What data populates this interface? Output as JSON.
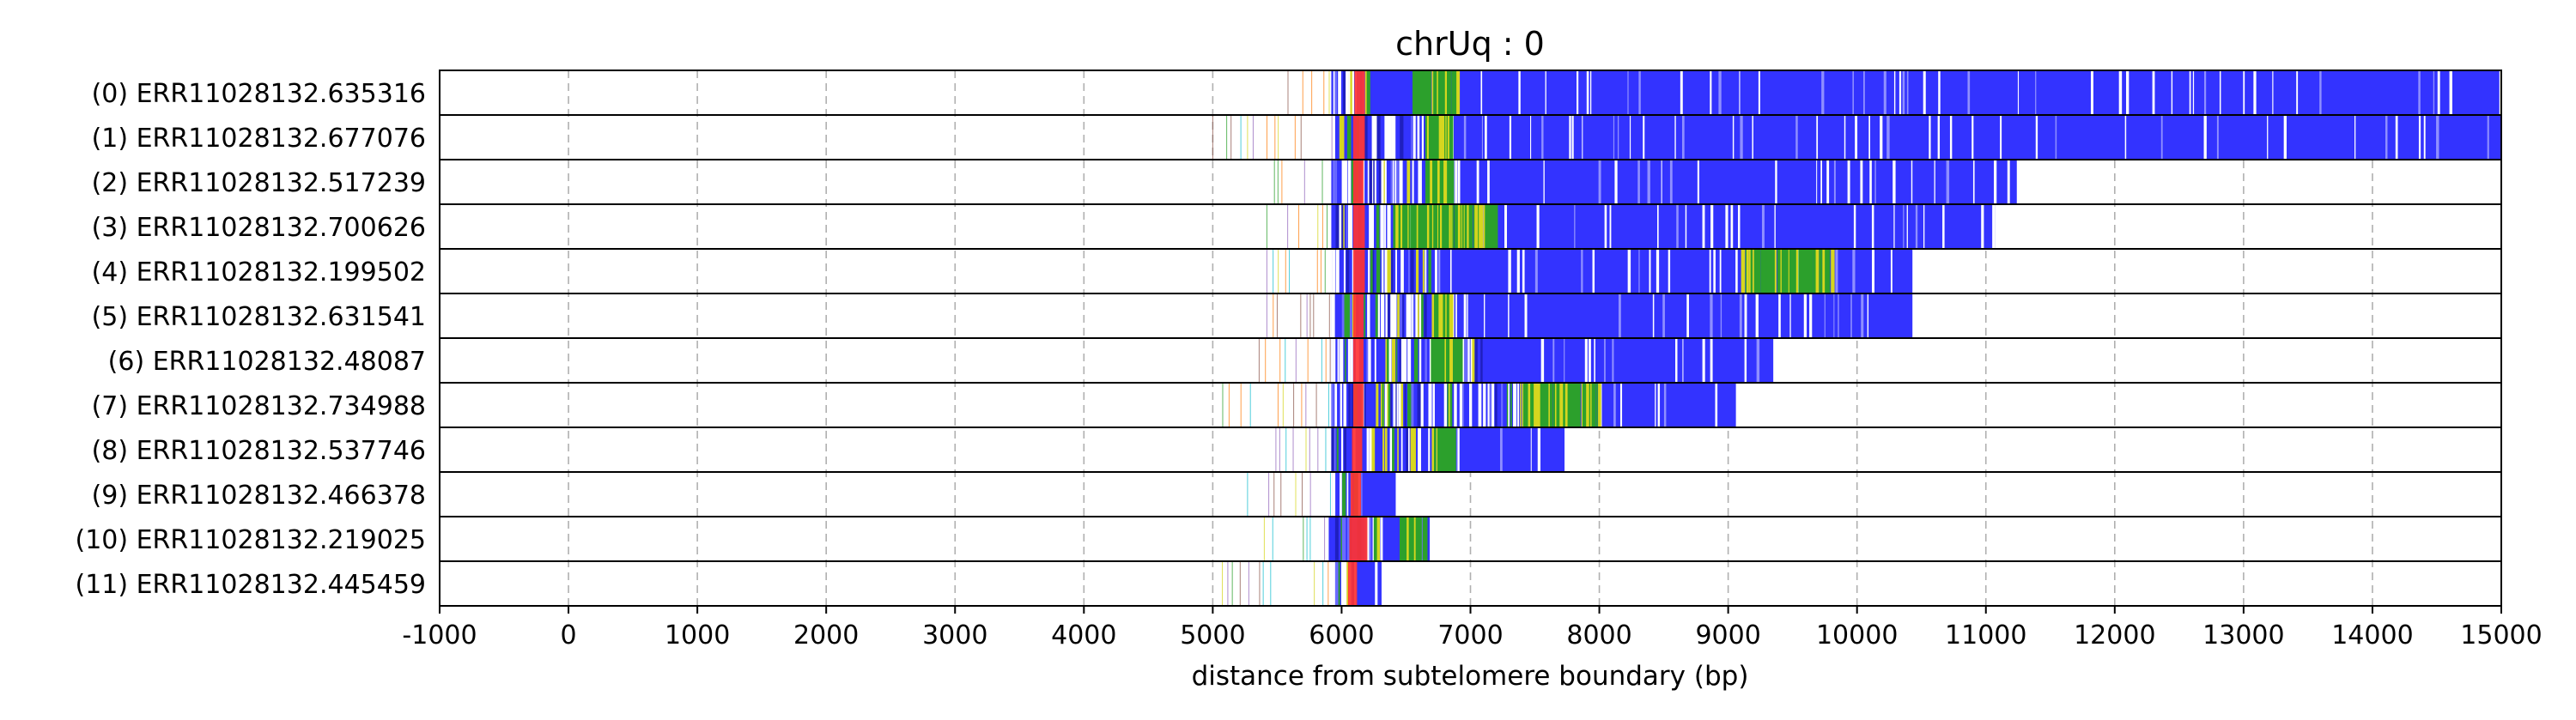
{
  "chart_data": {
    "type": "read-tracks",
    "title": "chrUq : 0",
    "xlabel": "distance from subtelomere boundary (bp)",
    "ylabel": "",
    "xlim": [
      -1000,
      15000
    ],
    "xticks": [
      -1000,
      0,
      1000,
      2000,
      3000,
      4000,
      5000,
      6000,
      7000,
      8000,
      9000,
      10000,
      11000,
      12000,
      13000,
      14000,
      15000
    ],
    "xtick_labels": [
      "-1000",
      "0",
      "1000",
      "2000",
      "3000",
      "4000",
      "5000",
      "6000",
      "7000",
      "8000",
      "9000",
      "10000",
      "11000",
      "12000",
      "13000",
      "14000",
      "15000"
    ],
    "grid": "x-dashed",
    "colors": {
      "blue": "#3333ff",
      "red": "#ff3333",
      "green": "#2ca02c",
      "yellow": "#d6d61f",
      "white": "#ffffff"
    },
    "reads": [
      {
        "label": "(0) ERR11028132.635316",
        "scatter_start": 5420,
        "start": 5920,
        "dense_start": 6200,
        "end": 15000,
        "segments": [
          {
            "from": 6100,
            "to": 6180,
            "color": "red"
          },
          {
            "from": 6550,
            "to": 6900,
            "color": "green"
          }
        ]
      },
      {
        "label": "(1) ERR11028132.677076",
        "scatter_start": 5000,
        "start": 5950,
        "dense_start": 6600,
        "end": 15000,
        "segments": [
          {
            "from": 6090,
            "to": 6180,
            "color": "red"
          },
          {
            "from": 6650,
            "to": 6850,
            "color": "green"
          }
        ]
      },
      {
        "label": "(2) ERR11028132.517239",
        "scatter_start": 5420,
        "start": 5920,
        "dense_start": 6900,
        "end": 11240,
        "segments": [
          {
            "from": 6090,
            "to": 6170,
            "color": "red"
          },
          {
            "from": 6650,
            "to": 6850,
            "color": "green"
          }
        ]
      },
      {
        "label": "(3) ERR11028132.700626",
        "scatter_start": 5420,
        "start": 5920,
        "dense_start": 7000,
        "end": 11070,
        "segments": [
          {
            "from": 6090,
            "to": 6180,
            "color": "red"
          },
          {
            "from": 6400,
            "to": 7200,
            "color": "green"
          }
        ]
      },
      {
        "label": "(4) ERR11028132.199502",
        "scatter_start": 5420,
        "start": 5930,
        "dense_start": 6750,
        "end": 10430,
        "segments": [
          {
            "from": 6090,
            "to": 6180,
            "color": "red"
          },
          {
            "from": 9100,
            "to": 9800,
            "color": "green"
          }
        ]
      },
      {
        "label": "(5) ERR11028132.631541",
        "scatter_start": 5420,
        "start": 5920,
        "dense_start": 6900,
        "end": 10430,
        "segments": [
          {
            "from": 6090,
            "to": 6170,
            "color": "red"
          },
          {
            "from": 6700,
            "to": 6850,
            "color": "green"
          }
        ]
      },
      {
        "label": "(6) ERR11028132.48087",
        "scatter_start": 5360,
        "start": 5920,
        "dense_start": 7100,
        "end": 9350,
        "segments": [
          {
            "from": 6090,
            "to": 6170,
            "color": "red"
          },
          {
            "from": 6700,
            "to": 6900,
            "color": "green"
          }
        ]
      },
      {
        "label": "(7) ERR11028132.734988",
        "scatter_start": 5050,
        "start": 5920,
        "dense_start": 7500,
        "end": 9060,
        "segments": [
          {
            "from": 6090,
            "to": 6170,
            "color": "red"
          },
          {
            "from": 7400,
            "to": 8000,
            "color": "green"
          }
        ]
      },
      {
        "label": "(8) ERR11028132.537746",
        "scatter_start": 5420,
        "start": 5920,
        "dense_start": 6900,
        "end": 7730,
        "segments": [
          {
            "from": 6080,
            "to": 6160,
            "color": "red"
          },
          {
            "from": 6700,
            "to": 6880,
            "color": "green"
          }
        ]
      },
      {
        "label": "(9) ERR11028132.466378",
        "scatter_start": 5270,
        "start": 5930,
        "dense_start": 6200,
        "end": 6420,
        "segments": [
          {
            "from": 6070,
            "to": 6150,
            "color": "red"
          }
        ]
      },
      {
        "label": "(10) ERR11028132.219025",
        "scatter_start": 5400,
        "start": 5900,
        "dense_start": 6300,
        "end": 6700,
        "segments": [
          {
            "from": 6060,
            "to": 6200,
            "color": "red"
          },
          {
            "from": 6450,
            "to": 6650,
            "color": "green"
          }
        ]
      },
      {
        "label": "(11) ERR11028132.445459",
        "scatter_start": 4990,
        "start": 5950,
        "dense_start": 6100,
        "end": 6310,
        "segments": [
          {
            "from": 6050,
            "to": 6120,
            "color": "red"
          }
        ]
      }
    ]
  }
}
